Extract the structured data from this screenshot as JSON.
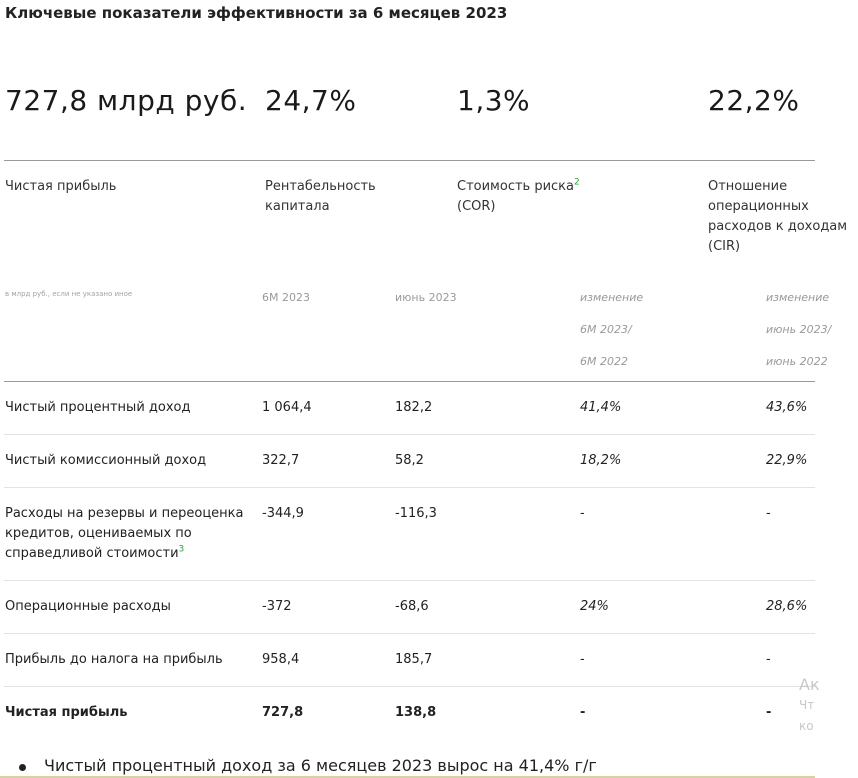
{
  "title": "Ключевые показатели эффективности за 6 месяцев 2023",
  "kpis": [
    {
      "value": "727,8 млрд руб.",
      "label": "Чистая прибыль",
      "sup": ""
    },
    {
      "value": "24,7%",
      "label": "Рентабельность капитала",
      "sup": ""
    },
    {
      "value": "1,3%",
      "label_a": "Стоимость риска",
      "sup": "2",
      "label_b": "(COR)"
    },
    {
      "value": "22,2%",
      "label": "Отношение операционных расходов к доходам (CIR)"
    }
  ],
  "table": {
    "unit_note": "в млрд руб., если не указано иное",
    "col_6m": "6М 2023",
    "col_june": "июнь 2023",
    "col_change_6m": [
      "изменение",
      "6М 2023/",
      "6М 2022"
    ],
    "col_change_june": [
      "изменение",
      "июнь 2023/",
      "июнь 2022"
    ],
    "rows": [
      {
        "label": "Чистый процентный доход",
        "v6m": "1 064,4",
        "vjune": "182,2",
        "ch6m": "41,4%",
        "chjune": "43,6%",
        "sup": ""
      },
      {
        "label": "Чистый комиссионный доход",
        "v6m": "322,7",
        "vjune": "58,2",
        "ch6m": "18,2%",
        "chjune": "22,9%",
        "sup": ""
      },
      {
        "label": "Расходы на резервы и переоценка кредитов, оцениваемых по справедливой стоимости",
        "sup": "3",
        "v6m": "-344,9",
        "vjune": "-116,3",
        "ch6m": "-",
        "chjune": "-"
      },
      {
        "label": "Операционные расходы",
        "v6m": "-372",
        "vjune": "-68,6",
        "ch6m": "24%",
        "chjune": "28,6%",
        "sup": ""
      },
      {
        "label": "Прибыль до налога на прибыль",
        "v6m": "958,4",
        "vjune": "185,7",
        "ch6m": "-",
        "chjune": "-",
        "sup": ""
      },
      {
        "label": "Чистая прибыль",
        "v6m": "727,8",
        "vjune": "138,8",
        "ch6m": "-",
        "chjune": "-",
        "sup": ""
      }
    ]
  },
  "overlay": {
    "line1": "Ак",
    "line2": "Чт",
    "line3": "ко"
  },
  "bullet": "Чистый процентный доход за 6 месяцев 2023 вырос на 41,4% г/г"
}
